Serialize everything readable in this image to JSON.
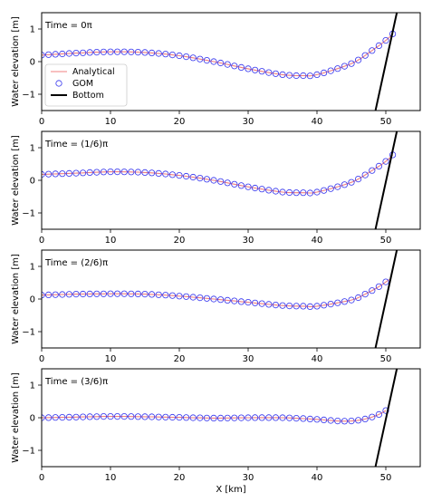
{
  "chart_data": [
    {
      "type": "line",
      "annotation": "Time = 0π",
      "xlim": [
        0,
        55
      ],
      "ylim": [
        -1.5,
        1.5
      ],
      "xticks": [
        0,
        10,
        20,
        30,
        40,
        50
      ],
      "yticks": [
        -1,
        0,
        1
      ],
      "ylabel": "Water elevation [m]",
      "xlabel": "",
      "legend": {
        "placement": "center-left",
        "entries": [
          "Analytical",
          "GOM",
          "Bottom"
        ]
      },
      "series": [
        {
          "name": "Analytical",
          "style": "line",
          "color": "#f08080",
          "x": [
            0,
            5,
            10,
            15,
            20,
            25,
            30,
            35,
            38,
            40,
            45,
            48,
            50,
            51
          ],
          "y": [
            0.2,
            0.26,
            0.3,
            0.28,
            0.18,
            0.0,
            -0.22,
            -0.4,
            -0.43,
            -0.4,
            -0.06,
            0.34,
            0.65,
            0.85
          ]
        },
        {
          "name": "GOM",
          "style": "open-circle",
          "color": "#3333ee",
          "x": [
            0,
            5,
            10,
            15,
            20,
            25,
            30,
            35,
            38,
            40,
            45,
            48,
            50,
            51
          ],
          "y": [
            0.2,
            0.26,
            0.3,
            0.28,
            0.18,
            0.0,
            -0.22,
            -0.4,
            -0.43,
            -0.4,
            -0.06,
            0.34,
            0.65,
            0.85
          ]
        },
        {
          "name": "Bottom",
          "style": "line",
          "color": "#000000",
          "x": [
            48.5,
            51.6
          ],
          "y": [
            -1.5,
            1.5
          ]
        }
      ]
    },
    {
      "type": "line",
      "annotation": "Time = (1/6)π",
      "xlim": [
        0,
        55
      ],
      "ylim": [
        -1.5,
        1.5
      ],
      "xticks": [
        0,
        10,
        20,
        30,
        40,
        50
      ],
      "yticks": [
        -1,
        0,
        1
      ],
      "ylabel": "Water elevation [m]",
      "xlabel": "",
      "series": [
        {
          "name": "Analytical",
          "style": "line",
          "color": "#f08080",
          "x": [
            0,
            5,
            10,
            15,
            20,
            25,
            30,
            35,
            38,
            40,
            45,
            48,
            50,
            51
          ],
          "y": [
            0.18,
            0.22,
            0.26,
            0.24,
            0.15,
            0.0,
            -0.2,
            -0.36,
            -0.38,
            -0.36,
            -0.06,
            0.3,
            0.58,
            0.78
          ]
        },
        {
          "name": "GOM",
          "style": "open-circle",
          "color": "#3333ee",
          "x": [
            0,
            5,
            10,
            15,
            20,
            25,
            30,
            35,
            38,
            40,
            45,
            48,
            50,
            51
          ],
          "y": [
            0.18,
            0.22,
            0.26,
            0.24,
            0.15,
            0.0,
            -0.2,
            -0.36,
            -0.38,
            -0.36,
            -0.06,
            0.3,
            0.58,
            0.78
          ]
        },
        {
          "name": "Bottom",
          "style": "line",
          "color": "#000000",
          "x": [
            48.5,
            51.6
          ],
          "y": [
            -1.5,
            1.5
          ]
        }
      ]
    },
    {
      "type": "line",
      "annotation": "Time = (2/6)π",
      "xlim": [
        0,
        55
      ],
      "ylim": [
        -1.5,
        1.5
      ],
      "xticks": [
        0,
        10,
        20,
        30,
        40,
        50
      ],
      "yticks": [
        -1,
        0,
        1
      ],
      "ylabel": "Water elevation [m]",
      "xlabel": "",
      "series": [
        {
          "name": "Analytical",
          "style": "line",
          "color": "#f08080",
          "x": [
            0,
            5,
            10,
            15,
            20,
            25,
            30,
            35,
            38,
            40,
            45,
            47,
            49,
            50.5
          ],
          "y": [
            0.12,
            0.15,
            0.16,
            0.15,
            0.09,
            0.0,
            -0.1,
            -0.2,
            -0.22,
            -0.22,
            -0.03,
            0.15,
            0.38,
            0.6
          ]
        },
        {
          "name": "GOM",
          "style": "open-circle",
          "color": "#3333ee",
          "x": [
            0,
            5,
            10,
            15,
            20,
            25,
            30,
            35,
            38,
            40,
            45,
            47,
            49,
            50.5
          ],
          "y": [
            0.12,
            0.15,
            0.16,
            0.15,
            0.09,
            0.0,
            -0.1,
            -0.2,
            -0.22,
            -0.22,
            -0.03,
            0.15,
            0.38,
            0.6
          ]
        },
        {
          "name": "Bottom",
          "style": "line",
          "color": "#000000",
          "x": [
            48.5,
            51.6
          ],
          "y": [
            -1.5,
            1.5
          ]
        }
      ]
    },
    {
      "type": "line",
      "annotation": "Time = (3/6)π",
      "xlim": [
        0,
        55
      ],
      "ylim": [
        -1.5,
        1.5
      ],
      "xticks": [
        0,
        10,
        20,
        30,
        40,
        50
      ],
      "yticks": [
        -1,
        0,
        1
      ],
      "ylabel": "Water elevation [m]",
      "xlabel": "X [km]",
      "series": [
        {
          "name": "Analytical",
          "style": "line",
          "color": "#f08080",
          "x": [
            0,
            5,
            10,
            15,
            20,
            25,
            30,
            35,
            40,
            43,
            45,
            47,
            49,
            50
          ],
          "y": [
            0.0,
            0.02,
            0.04,
            0.03,
            0.01,
            -0.01,
            0.0,
            0.0,
            -0.05,
            -0.1,
            -0.1,
            -0.04,
            0.1,
            0.22
          ]
        },
        {
          "name": "GOM",
          "style": "open-circle",
          "color": "#3333ee",
          "x": [
            0,
            5,
            10,
            15,
            20,
            25,
            30,
            35,
            40,
            43,
            45,
            47,
            49,
            50
          ],
          "y": [
            0.0,
            0.02,
            0.04,
            0.03,
            0.01,
            -0.01,
            0.0,
            0.0,
            -0.05,
            -0.1,
            -0.1,
            -0.04,
            0.1,
            0.22
          ]
        },
        {
          "name": "Bottom",
          "style": "line",
          "color": "#000000",
          "x": [
            48.5,
            51.6
          ],
          "y": [
            -1.5,
            1.5
          ]
        }
      ]
    }
  ]
}
